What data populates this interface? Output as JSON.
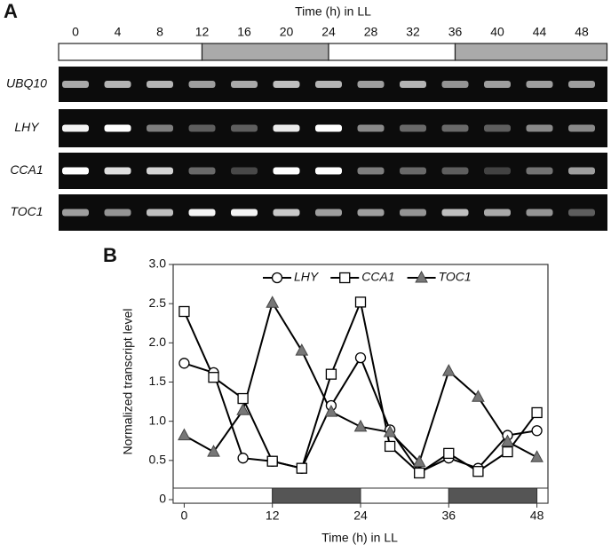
{
  "panel_a": {
    "label": "A",
    "title": "Time (h) in LL",
    "times": [
      0,
      4,
      8,
      12,
      16,
      20,
      24,
      28,
      32,
      36,
      40,
      44,
      48
    ],
    "light_dark": [
      {
        "start": -1.6,
        "end": 12,
        "dark": false
      },
      {
        "start": 12,
        "end": 24,
        "dark": true
      },
      {
        "start": 24,
        "end": 36,
        "dark": false
      },
      {
        "start": 36,
        "end": 50.4,
        "dark": true
      }
    ],
    "gels": [
      {
        "gene": "UBQ10",
        "intensity": [
          0.6,
          0.65,
          0.65,
          0.55,
          0.6,
          0.7,
          0.65,
          0.55,
          0.65,
          0.5,
          0.55,
          0.55,
          0.55
        ]
      },
      {
        "gene": "LHY",
        "intensity": [
          0.95,
          1,
          0.4,
          0.25,
          0.25,
          0.9,
          1,
          0.45,
          0.3,
          0.3,
          0.25,
          0.45,
          0.45
        ]
      },
      {
        "gene": "CCA1",
        "intensity": [
          1,
          0.85,
          0.8,
          0.3,
          0.15,
          1,
          1,
          0.4,
          0.3,
          0.25,
          0.12,
          0.35,
          0.55
        ]
      },
      {
        "gene": "TOC1",
        "intensity": [
          0.55,
          0.5,
          0.7,
          0.95,
          0.95,
          0.75,
          0.55,
          0.55,
          0.5,
          0.7,
          0.6,
          0.5,
          0.25
        ]
      }
    ]
  },
  "chart_data": {
    "type": "line",
    "label": "B",
    "x_label": "Time (h) in LL",
    "y_label": "Normalized transcript level",
    "x": [
      0,
      4,
      8,
      12,
      16,
      20,
      24,
      28,
      32,
      36,
      40,
      44,
      48
    ],
    "series": [
      {
        "name": "LHY",
        "color": "#000000",
        "marker": "circle",
        "values": [
          1.74,
          1.62,
          0.53,
          0.49,
          0.4,
          1.2,
          1.81,
          0.89,
          0.35,
          0.53,
          0.4,
          0.82,
          0.88
        ]
      },
      {
        "name": "CCA1",
        "color": "#000000",
        "marker": "square",
        "values": [
          2.4,
          1.56,
          1.29,
          0.49,
          0.4,
          1.6,
          2.52,
          0.68,
          0.34,
          0.59,
          0.36,
          0.61,
          1.11
        ]
      },
      {
        "name": "TOC1",
        "color": "#000000",
        "marker": "triangle",
        "values": [
          0.82,
          0.61,
          1.14,
          2.51,
          1.9,
          1.12,
          0.93,
          0.86,
          0.48,
          1.64,
          1.31,
          0.74,
          0.54
        ]
      }
    ],
    "xlim": [
      -1.5,
      49.5
    ],
    "xticks": [
      0,
      12,
      24,
      36,
      48
    ],
    "ylim": [
      0,
      3
    ],
    "yticks": [
      0,
      0.5,
      {
        "value": 1,
        "label": "1.0"
      },
      1.5,
      {
        "value": 2,
        "label": "2.0"
      },
      2.5,
      {
        "value": 3,
        "label": "3.0"
      }
    ],
    "light_dark": [
      {
        "start": -1.5,
        "end": 12,
        "dark": false
      },
      {
        "start": 12,
        "end": 24,
        "dark": true
      },
      {
        "start": 24,
        "end": 36,
        "dark": false
      },
      {
        "start": 36,
        "end": 48,
        "dark": true
      },
      {
        "start": 48,
        "end": 49.5,
        "dark": false
      }
    ],
    "legend": "top"
  }
}
